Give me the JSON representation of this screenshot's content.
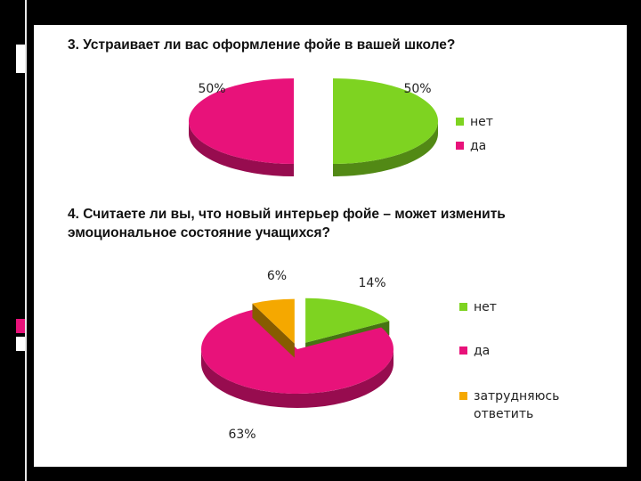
{
  "slide": {
    "q1": "3. Устраивает ли вас оформление фойе в вашей школе?",
    "q2_line1": "4. Считаете ли вы, что новый интерьер фойе – может изменить",
    "q2_line2": "эмоциональное состояние учащихся?"
  },
  "chart_data": [
    {
      "type": "pie",
      "categories": [
        "нет",
        "да"
      ],
      "values": [
        50,
        50
      ],
      "labels": [
        "50%",
        "50%"
      ],
      "colors": [
        "#7ed321",
        "#e8127a"
      ],
      "legend_position": "right"
    },
    {
      "type": "pie",
      "categories": [
        "нет",
        "да",
        "затрудняюсь ответить"
      ],
      "values": [
        14,
        63,
        6
      ],
      "labels": [
        "14%",
        "63%",
        "6%"
      ],
      "colors": [
        "#7ed321",
        "#e8127a",
        "#f5a800"
      ],
      "legend_position": "right"
    }
  ],
  "legend2_third": [
    "затрудняюсь",
    "ответить"
  ]
}
